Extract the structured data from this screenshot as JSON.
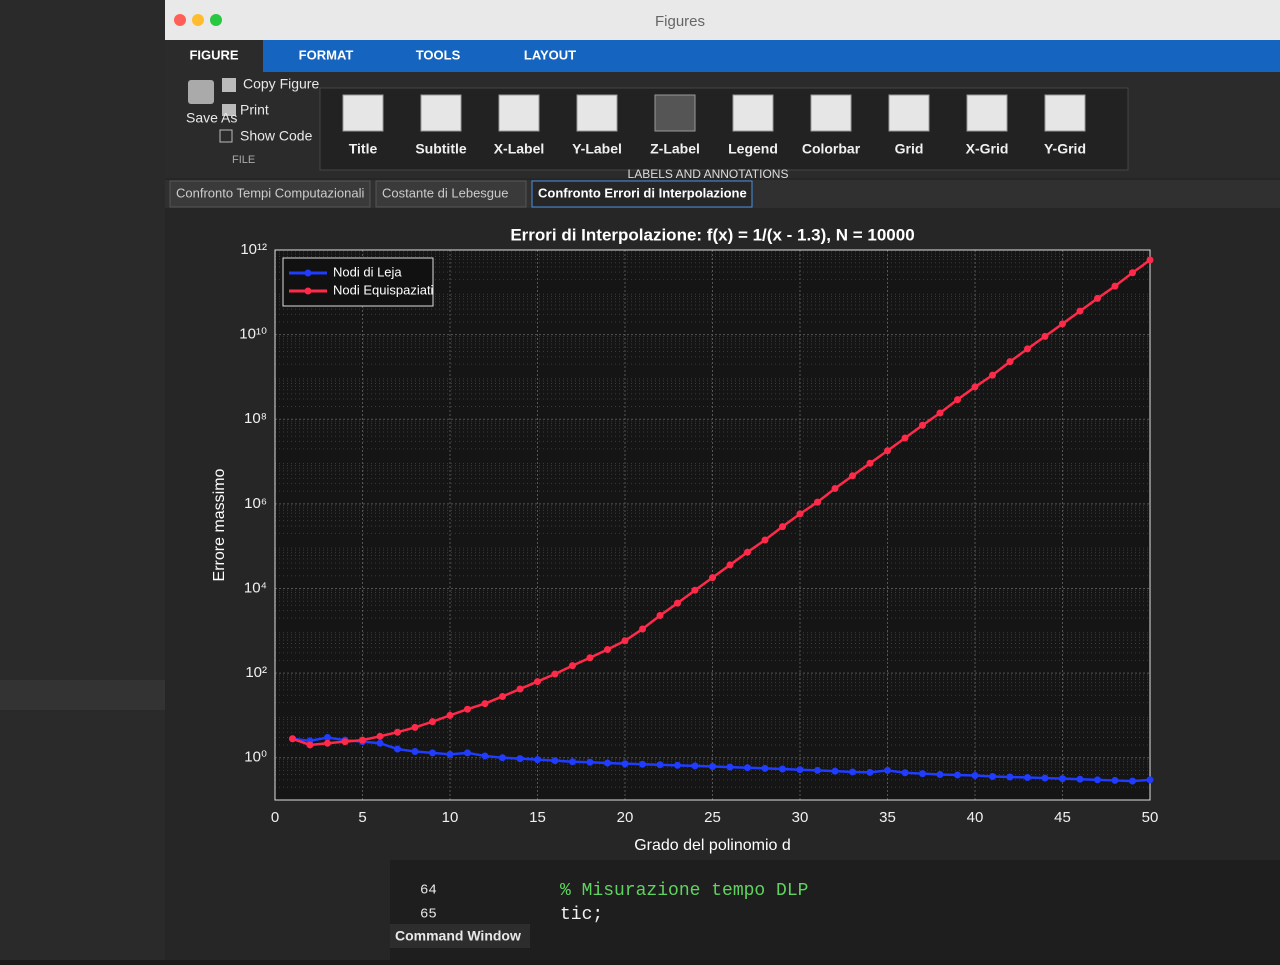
{
  "ui": {
    "window_title": "Figures",
    "ribbon_tabs": [
      "FIGURE",
      "FORMAT",
      "TOOLS",
      "LAYOUT"
    ],
    "file_group": {
      "copy": "Copy Figure",
      "print": "Print",
      "show_code": "Show Code",
      "save_as": "Save As",
      "label": "FILE"
    },
    "annotation_buttons": [
      "Title",
      "Subtitle",
      "X-Label",
      "Y-Label",
      "Z-Label",
      "Legend",
      "Colorbar",
      "Grid",
      "X-Grid",
      "Y-Grid"
    ],
    "annotation_group": "LABELS AND ANNOTATIONS",
    "figure_tabs": [
      "Confronto Tempi Computazionali",
      "Costante di Lebesgue",
      "Confronto Errori di Interpolazione"
    ],
    "editor": {
      "line_numbers": [
        "64",
        "65"
      ],
      "code": [
        "% Misurazione tempo DLP",
        "tic;"
      ],
      "command_window": "Command Window"
    }
  },
  "chart_data": {
    "type": "line",
    "title": "Errori di Interpolazione: f(x) = 1/(x - 1.3), N = 10000",
    "xlabel": "Grado del polinomio d",
    "ylabel": "Errore massimo",
    "x": [
      1,
      2,
      3,
      4,
      5,
      6,
      7,
      8,
      9,
      10,
      11,
      12,
      13,
      14,
      15,
      16,
      17,
      18,
      19,
      20,
      21,
      22,
      23,
      24,
      25,
      26,
      27,
      28,
      29,
      30,
      31,
      32,
      33,
      34,
      35,
      36,
      37,
      38,
      39,
      40,
      41,
      42,
      43,
      44,
      45,
      46,
      47,
      48,
      49,
      50
    ],
    "series": [
      {
        "name": "Nodi di Leja",
        "color": "#1f3cff",
        "values": [
          2.8,
          2.5,
          3,
          2.6,
          2.4,
          2.2,
          1.6,
          1.4,
          1.3,
          1.2,
          1.3,
          1.1,
          1.0,
          0.95,
          0.9,
          0.85,
          0.8,
          0.78,
          0.75,
          0.72,
          0.7,
          0.68,
          0.66,
          0.64,
          0.62,
          0.6,
          0.58,
          0.56,
          0.54,
          0.52,
          0.5,
          0.48,
          0.46,
          0.45,
          0.5,
          0.44,
          0.42,
          0.4,
          0.39,
          0.38,
          0.36,
          0.35,
          0.34,
          0.33,
          0.32,
          0.31,
          0.3,
          0.29,
          0.28,
          0.3
        ]
      },
      {
        "name": "Nodi Equispaziati",
        "color": "#ff2a4a",
        "values": [
          2.8,
          2,
          2.2,
          2.4,
          2.6,
          3.2,
          4,
          5.2,
          7.1,
          10,
          14,
          19,
          28,
          42,
          63,
          95,
          150,
          230,
          360,
          580,
          1100,
          2300,
          4500,
          9100,
          18000,
          36000,
          72000,
          140000,
          290000,
          580000,
          1100000,
          2300000,
          4600000,
          9100000,
          18000000,
          36000000,
          72000000,
          140000000,
          290000000,
          580000000,
          1100000000,
          2300000000,
          4600000000,
          9100000000,
          18000000000,
          36000000000,
          72000000000,
          140000000000,
          290000000000,
          580000000000
        ]
      }
    ],
    "xlim": [
      0,
      50
    ],
    "xticks": [
      0,
      5,
      10,
      15,
      20,
      25,
      30,
      35,
      40,
      45,
      50
    ],
    "ylim": [
      0.1,
      1000000000000
    ],
    "yticks": [
      {
        "value": 1,
        "label": "10⁰"
      },
      {
        "value": 100,
        "label": "10²"
      },
      {
        "value": 10000,
        "label": "10⁴"
      },
      {
        "value": 1000000,
        "label": "10⁶"
      },
      {
        "value": 100000000,
        "label": "10⁸"
      },
      {
        "value": 10000000000,
        "label": "10¹⁰"
      },
      {
        "value": 1000000000000,
        "label": "10¹²"
      }
    ],
    "log_y": true,
    "grid": true,
    "minor_grid": true,
    "legend_loc": "northwest"
  }
}
